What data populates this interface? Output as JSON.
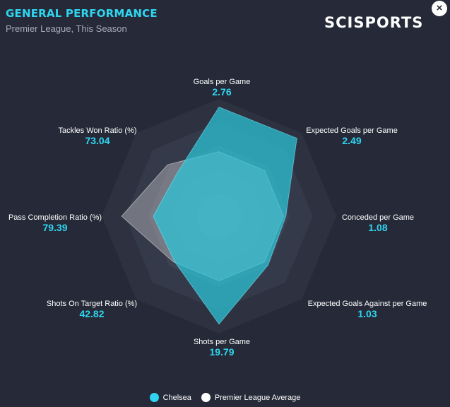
{
  "header": {
    "title": "GENERAL PERFORMANCE",
    "subtitle": "Premier League, This Season",
    "logo_text": "SCISPORTS",
    "close_symbol": "×"
  },
  "colors": {
    "accent": "#2fd5f0",
    "team_fill": "#2cc6da",
    "league_fill": "#c9c9c9",
    "background": "#262a38"
  },
  "chart_data": {
    "type": "radar",
    "title": "GENERAL PERFORMANCE",
    "subtitle": "Premier League, This Season",
    "grid_rings": 5,
    "axes": [
      {
        "label": "Goals per Game",
        "value": "2.76"
      },
      {
        "label": "Expected Goals per Game",
        "value": "2.49"
      },
      {
        "label": "Conceded per Game",
        "value": "1.08"
      },
      {
        "label": "Expected Goals Against per Game",
        "value": "1.03"
      },
      {
        "label": "Shots per Game",
        "value": "19.79"
      },
      {
        "label": "Shots On Target Ratio (%)",
        "value": "42.82"
      },
      {
        "label": "Pass Completion Ratio (%)",
        "value": "79.39"
      },
      {
        "label": "Tackles Won Ratio (%)",
        "value": "73.04"
      }
    ],
    "series": [
      {
        "name": "Chelsea",
        "normalized": [
          0.93,
          0.94,
          0.57,
          0.59,
          0.92,
          0.54,
          0.56,
          0.51
        ]
      },
      {
        "name": "Premier League Average",
        "normalized": [
          0.55,
          0.55,
          0.55,
          0.55,
          0.55,
          0.55,
          0.83,
          0.62
        ]
      }
    ],
    "legend": {
      "position": "bottom"
    }
  }
}
